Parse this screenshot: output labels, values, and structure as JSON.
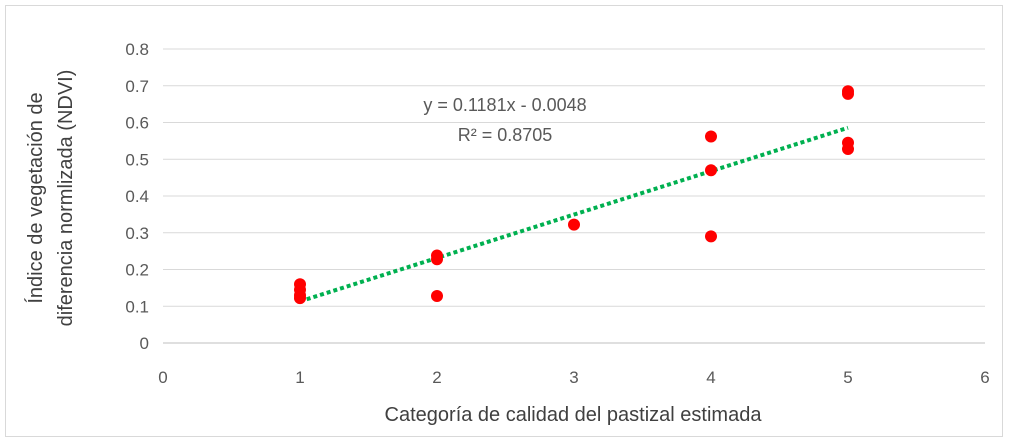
{
  "chart_data": {
    "type": "scatter",
    "xlabel": "Categoría de calidad del pastizal estimada",
    "ylabel_lines": [
      "Índice de vegetación de",
      "diferencia normlizada (NDVI)"
    ],
    "xlim": [
      0,
      6
    ],
    "ylim": [
      0,
      0.8
    ],
    "xticks": [
      "0",
      "1",
      "2",
      "3",
      "4",
      "5",
      "6"
    ],
    "yticks": [
      "0",
      "0.1",
      "0.2",
      "0.3",
      "0.4",
      "0.5",
      "0.6",
      "0.7",
      "0.8"
    ],
    "grid": "horizontal",
    "point_color": "#ff0000",
    "trendline_color": "#00b050",
    "points": [
      {
        "x": 1,
        "y": 0.16
      },
      {
        "x": 1,
        "y": 0.145
      },
      {
        "x": 1,
        "y": 0.13
      },
      {
        "x": 1,
        "y": 0.122
      },
      {
        "x": 2,
        "y": 0.238
      },
      {
        "x": 2,
        "y": 0.228
      },
      {
        "x": 2,
        "y": 0.128
      },
      {
        "x": 3,
        "y": 0.322
      },
      {
        "x": 4,
        "y": 0.562
      },
      {
        "x": 4,
        "y": 0.47
      },
      {
        "x": 4,
        "y": 0.29
      },
      {
        "x": 5,
        "y": 0.685
      },
      {
        "x": 5,
        "y": 0.678
      },
      {
        "x": 5,
        "y": 0.545
      },
      {
        "x": 5,
        "y": 0.528
      }
    ],
    "trendline": {
      "slope": 0.1181,
      "intercept": -0.0048,
      "x_range": [
        1,
        5
      ]
    },
    "annotations": [
      "y = 0.1181x - 0.0048",
      "R² = 0.8705"
    ]
  }
}
